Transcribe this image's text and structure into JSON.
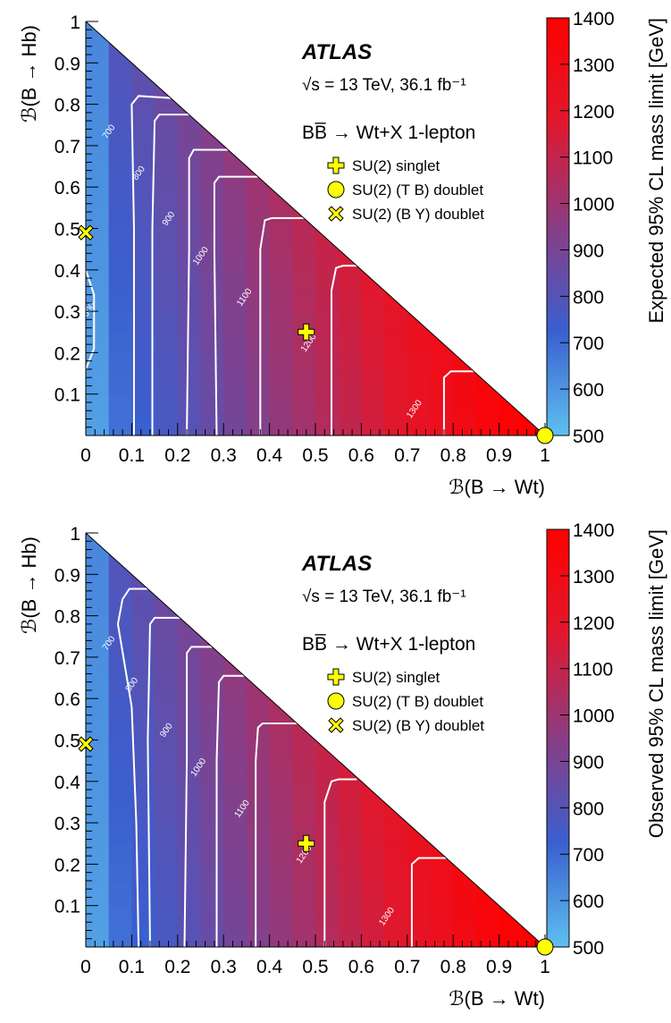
{
  "chart_data": [
    {
      "type": "heatmap",
      "title": "ATLAS",
      "energy_label": "√s = 13 TeV, 36.1 fb⁻¹",
      "process_label": "BB̅ → Wt+X 1-lepton",
      "xlabel": "ℬ(B → Wt)",
      "ylabel": "ℬ(B → Hb)",
      "zlabel": "Expected 95% CL mass limit [GeV]",
      "xlim": [
        0,
        1
      ],
      "ylim": [
        0,
        1
      ],
      "zlim": [
        500,
        1400
      ],
      "x_ticks": [
        "0",
        "0.1",
        "0.2",
        "0.3",
        "0.4",
        "0.5",
        "0.6",
        "0.7",
        "0.8",
        "0.9",
        "1"
      ],
      "y_ticks": [
        "0.1",
        "0.2",
        "0.3",
        "0.4",
        "0.5",
        "0.6",
        "0.7",
        "0.8",
        "0.9",
        "1"
      ],
      "z_ticks": [
        "500",
        "600",
        "700",
        "800",
        "900",
        "1000",
        "1100",
        "1200",
        "1300",
        "1400"
      ],
      "colormap": [
        "#5ec0f0",
        "#3a5fcf",
        "#8a3d84",
        "#e0182e",
        "#ff0000"
      ],
      "contours": [
        {
          "level": "600",
          "points": [
            [
              0,
              0.16
            ],
            [
              0.018,
              0.21
            ],
            [
              0.018,
              0.34
            ],
            [
              0,
              0.4
            ]
          ],
          "label_at": [
            0.012,
            0.3
          ]
        },
        {
          "level": "700",
          "points": [
            [
              0.105,
              0
            ],
            [
              0.105,
              0.5
            ],
            [
              0.1,
              0.8
            ],
            [
              0.115,
              0.82
            ],
            [
              0.185,
              0.815
            ]
          ],
          "label_at": [
            0.055,
            0.73
          ]
        },
        {
          "level": "800",
          "points": [
            [
              0.145,
              0
            ],
            [
              0.145,
              0.5
            ],
            [
              0.15,
              0.76
            ],
            [
              0.16,
              0.775
            ],
            [
              0.225,
              0.775
            ]
          ],
          "label_at": [
            0.12,
            0.63
          ]
        },
        {
          "level": "900",
          "points": [
            [
              0.22,
              0
            ],
            [
              0.225,
              0.45
            ],
            [
              0.225,
              0.67
            ],
            [
              0.235,
              0.69
            ],
            [
              0.31,
              0.69
            ]
          ],
          "label_at": [
            0.185,
            0.52
          ]
        },
        {
          "level": "1000",
          "points": [
            [
              0.285,
              0
            ],
            [
              0.28,
              0.45
            ],
            [
              0.28,
              0.61
            ],
            [
              0.29,
              0.625
            ],
            [
              0.375,
              0.625
            ]
          ],
          "label_at": [
            0.255,
            0.43
          ]
        },
        {
          "level": "1100",
          "points": [
            [
              0.38,
              0
            ],
            [
              0.38,
              0.45
            ],
            [
              0.39,
              0.52
            ],
            [
              0.405,
              0.525
            ],
            [
              0.475,
              0.525
            ]
          ],
          "label_at": [
            0.35,
            0.33
          ]
        },
        {
          "level": "1200",
          "points": [
            [
              0.535,
              0
            ],
            [
              0.535,
              0.35
            ],
            [
              0.545,
              0.405
            ],
            [
              0.56,
              0.41
            ],
            [
              0.59,
              0.41
            ]
          ],
          "label_at": [
            0.49,
            0.22
          ]
        },
        {
          "level": "1300",
          "points": [
            [
              0.78,
              0
            ],
            [
              0.78,
              0.14
            ],
            [
              0.795,
              0.155
            ],
            [
              0.845,
              0.155
            ]
          ],
          "label_at": [
            0.72,
            0.06
          ]
        }
      ],
      "markers": [
        {
          "name": "SU(2) singlet",
          "shape": "plus",
          "x": 0.48,
          "y": 0.25
        },
        {
          "name": "SU(2) (T B) doublet",
          "shape": "circle",
          "x": 1.0,
          "y": 0.0
        },
        {
          "name": "SU(2) (B Y) doublet",
          "shape": "cross",
          "x": 0.0,
          "y": 0.49
        }
      ],
      "marker_color": "#ffff00"
    },
    {
      "type": "heatmap",
      "title": "ATLAS",
      "energy_label": "√s = 13 TeV, 36.1 fb⁻¹",
      "process_label": "BB̅ → Wt+X 1-lepton",
      "xlabel": "ℬ(B → Wt)",
      "ylabel": "ℬ(B → Hb)",
      "zlabel": "Observed 95% CL mass limit [GeV]",
      "xlim": [
        0,
        1
      ],
      "ylim": [
        0,
        1
      ],
      "zlim": [
        500,
        1400
      ],
      "x_ticks": [
        "0",
        "0.1",
        "0.2",
        "0.3",
        "0.4",
        "0.5",
        "0.6",
        "0.7",
        "0.8",
        "0.9",
        "1"
      ],
      "y_ticks": [
        "0.1",
        "0.2",
        "0.3",
        "0.4",
        "0.5",
        "0.6",
        "0.7",
        "0.8",
        "0.9",
        "1"
      ],
      "z_ticks": [
        "500",
        "600",
        "700",
        "800",
        "900",
        "1000",
        "1100",
        "1200",
        "1300",
        "1400"
      ],
      "colormap": [
        "#5ec0f0",
        "#3a5fcf",
        "#8a3d84",
        "#e0182e",
        "#ff0000"
      ],
      "contours": [
        {
          "level": "700",
          "points": [
            [
              0.115,
              0
            ],
            [
              0.11,
              0.3
            ],
            [
              0.1,
              0.58
            ],
            [
              0.07,
              0.78
            ],
            [
              0.08,
              0.84
            ],
            [
              0.095,
              0.865
            ],
            [
              0.135,
              0.865
            ]
          ],
          "label_at": [
            0.055,
            0.73
          ]
        },
        {
          "level": "800",
          "points": [
            [
              0.14,
              0
            ],
            [
              0.135,
              0.5
            ],
            [
              0.14,
              0.78
            ],
            [
              0.15,
              0.795
            ],
            [
              0.205,
              0.795
            ]
          ],
          "label_at": [
            0.105,
            0.63
          ]
        },
        {
          "level": "900",
          "points": [
            [
              0.215,
              0
            ],
            [
              0.22,
              0.45
            ],
            [
              0.22,
              0.71
            ],
            [
              0.23,
              0.725
            ],
            [
              0.275,
              0.725
            ]
          ],
          "label_at": [
            0.18,
            0.52
          ]
        },
        {
          "level": "1000",
          "points": [
            [
              0.285,
              0
            ],
            [
              0.285,
              0.45
            ],
            [
              0.29,
              0.64
            ],
            [
              0.3,
              0.655
            ],
            [
              0.345,
              0.655
            ]
          ],
          "label_at": [
            0.25,
            0.43
          ]
        },
        {
          "level": "1100",
          "points": [
            [
              0.37,
              0
            ],
            [
              0.37,
              0.45
            ],
            [
              0.375,
              0.53
            ],
            [
              0.385,
              0.54
            ],
            [
              0.46,
              0.54
            ]
          ],
          "label_at": [
            0.345,
            0.33
          ]
        },
        {
          "level": "1200",
          "points": [
            [
              0.52,
              0
            ],
            [
              0.52,
              0.35
            ],
            [
              0.535,
              0.4
            ],
            [
              0.55,
              0.405
            ],
            [
              0.59,
              0.405
            ]
          ],
          "label_at": [
            0.48,
            0.22
          ]
        },
        {
          "level": "1300",
          "points": [
            [
              0.71,
              0
            ],
            [
              0.71,
              0.2
            ],
            [
              0.725,
              0.215
            ],
            [
              0.785,
              0.215
            ]
          ],
          "label_at": [
            0.66,
            0.07
          ]
        }
      ],
      "markers": [
        {
          "name": "SU(2) singlet",
          "shape": "plus",
          "x": 0.48,
          "y": 0.25
        },
        {
          "name": "SU(2) (T B) doublet",
          "shape": "circle",
          "x": 1.0,
          "y": 0.0
        },
        {
          "name": "SU(2) (B Y) doublet",
          "shape": "cross",
          "x": 0.0,
          "y": 0.49
        }
      ],
      "marker_color": "#ffff00"
    }
  ]
}
